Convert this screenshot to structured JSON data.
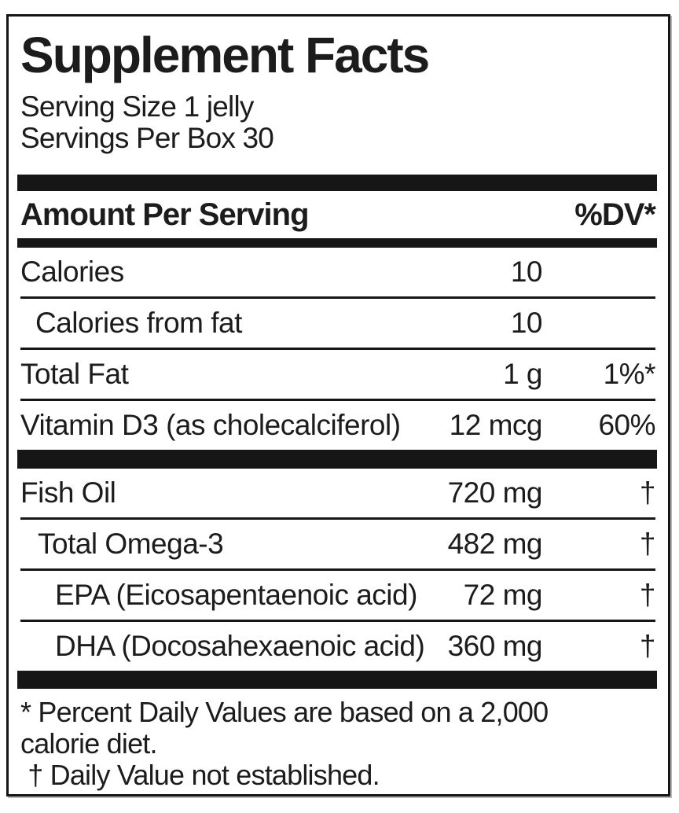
{
  "label": {
    "title": "Supplement Facts",
    "serving": {
      "size_line": "Serving Size 1 jelly",
      "per_box_line": "Servings Per Box 30"
    },
    "columns": {
      "amount_header": "Amount Per Serving",
      "dv_header": "%DV*"
    },
    "rows_group1": [
      {
        "label": "Calories",
        "amount": "10",
        "dv": ""
      },
      {
        "label": "Calories from fat",
        "amount": "10",
        "dv": ""
      },
      {
        "label": "Total Fat",
        "amount": "1 g",
        "dv": "1%*"
      },
      {
        "label": "Vitamin D3 (as cholecalciferol)",
        "amount": "12 mcg",
        "dv": "60%"
      }
    ],
    "rows_group2": [
      {
        "label": "Fish Oil",
        "amount": "720 mg",
        "dv": "†"
      },
      {
        "label": "Total Omega-3",
        "amount": "482 mg",
        "dv": "†"
      },
      {
        "label": "EPA (Eicosapentaenoic acid)",
        "amount": "72 mg",
        "dv": "†"
      },
      {
        "label": "DHA (Docosahexaenoic acid)",
        "amount": "360 mg",
        "dv": "†"
      }
    ],
    "footnotes": {
      "line1": "* Percent Daily Values are based on a 2,000",
      "line2": "calorie diet.",
      "line3": " † Daily Value not established."
    }
  }
}
